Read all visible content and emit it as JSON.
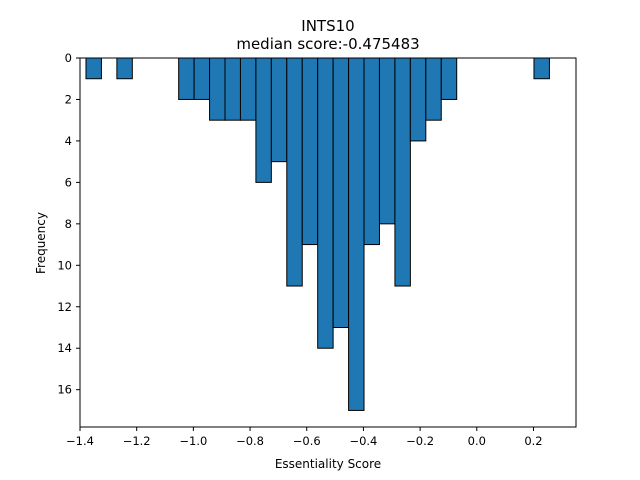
{
  "chart_data": {
    "type": "bar",
    "title": "INTS10",
    "subtitle": "median score:-0.475483",
    "xlabel": "Essentiality Score",
    "ylabel": "Frequency",
    "bin_width": 0.0545,
    "bins": [
      {
        "x0": -1.3789,
        "x1": -1.3244,
        "count": 1
      },
      {
        "x0": -1.2699,
        "x1": -1.2154,
        "count": 1
      },
      {
        "x0": -1.0519,
        "x1": -0.9974,
        "count": 2
      },
      {
        "x0": -0.9974,
        "x1": -0.9429,
        "count": 2
      },
      {
        "x0": -0.9429,
        "x1": -0.8884,
        "count": 3
      },
      {
        "x0": -0.8884,
        "x1": -0.8339,
        "count": 3
      },
      {
        "x0": -0.8339,
        "x1": -0.7794,
        "count": 3
      },
      {
        "x0": -0.7794,
        "x1": -0.7249,
        "count": 6
      },
      {
        "x0": -0.7249,
        "x1": -0.6704,
        "count": 5
      },
      {
        "x0": -0.6704,
        "x1": -0.6159,
        "count": 11
      },
      {
        "x0": -0.6159,
        "x1": -0.5614,
        "count": 9
      },
      {
        "x0": -0.5614,
        "x1": -0.5069,
        "count": 14
      },
      {
        "x0": -0.5069,
        "x1": -0.4524,
        "count": 13
      },
      {
        "x0": -0.4524,
        "x1": -0.3979,
        "count": 17
      },
      {
        "x0": -0.3979,
        "x1": -0.3434,
        "count": 9
      },
      {
        "x0": -0.3434,
        "x1": -0.2889,
        "count": 8
      },
      {
        "x0": -0.2889,
        "x1": -0.2344,
        "count": 11
      },
      {
        "x0": -0.2344,
        "x1": -0.1799,
        "count": 4
      },
      {
        "x0": -0.1799,
        "x1": -0.1254,
        "count": 3
      },
      {
        "x0": -0.1254,
        "x1": -0.0709,
        "count": 2
      },
      {
        "x0": 0.2017,
        "x1": 0.2562,
        "count": 1
      }
    ],
    "xlim": [
      -1.4,
      0.35
    ],
    "ylim": [
      17.8,
      0
    ],
    "y_inverted": true,
    "xticks": [
      -1.4,
      -1.2,
      -1.0,
      -0.8,
      -0.6,
      -0.4,
      -0.2,
      0.0,
      0.2
    ],
    "xtick_labels": [
      "−1.4",
      "−1.2",
      "−1.0",
      "−0.8",
      "−0.6",
      "−0.4",
      "−0.2",
      "0.0",
      "0.2"
    ],
    "yticks": [
      0,
      2,
      4,
      6,
      8,
      10,
      12,
      14,
      16
    ],
    "ytick_labels": [
      "0",
      "2",
      "4",
      "6",
      "8",
      "10",
      "12",
      "14",
      "16"
    ],
    "bar_color": "#1f77b4",
    "edge_color": "#000000",
    "grid": false,
    "legend": "none"
  }
}
